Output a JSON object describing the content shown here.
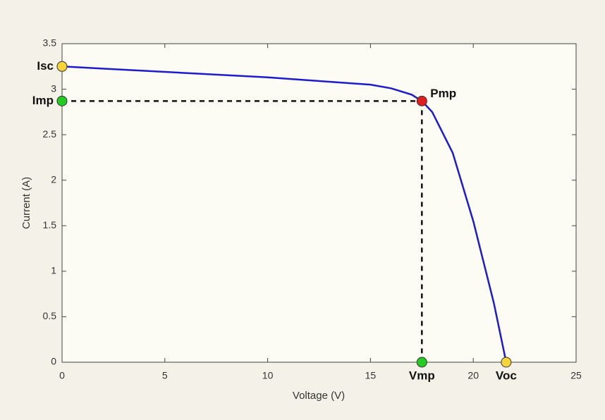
{
  "chart_data": {
    "type": "line",
    "x": [
      0,
      5,
      10,
      15,
      16,
      17,
      17.5,
      18,
      19,
      20,
      21,
      21.6
    ],
    "series": [
      {
        "color": "#1c1ccc",
        "values": [
          3.25,
          3.19,
          3.13,
          3.05,
          3.01,
          2.94,
          2.87,
          2.75,
          2.3,
          1.55,
          0.65,
          0
        ]
      }
    ],
    "points": [
      {
        "label": "Isc",
        "x": 0,
        "y": 3.25,
        "color": "#f7d43a"
      },
      {
        "label": "Imp",
        "x": 0,
        "y": 2.87,
        "color": "#22cc22"
      },
      {
        "label": "Pmp",
        "x": 17.5,
        "y": 2.87,
        "color": "#dd1f1f"
      },
      {
        "label": "Vmp",
        "x": 17.5,
        "y": 0,
        "color": "#22cc22"
      },
      {
        "label": "Voc",
        "x": 21.6,
        "y": 0,
        "color": "#f7d43a"
      }
    ],
    "xlabel": "Voltage (V)",
    "ylabel": "Current (A)",
    "xlim": [
      0,
      25
    ],
    "xticks": [
      0,
      5,
      10,
      15,
      20,
      25
    ],
    "ylim": [
      0,
      3.5
    ],
    "yticks": [
      0,
      0.5,
      1,
      1.5,
      2,
      2.5,
      3,
      3.5
    ],
    "grid": false
  }
}
